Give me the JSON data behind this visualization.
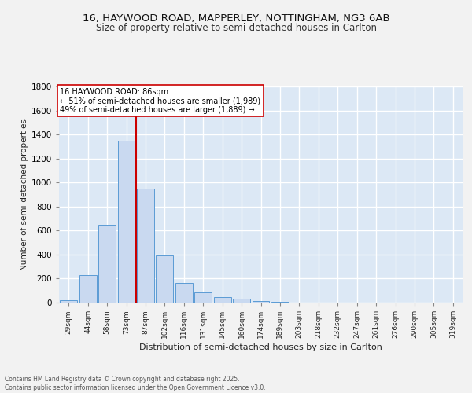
{
  "title1": "16, HAYWOOD ROAD, MAPPERLEY, NOTTINGHAM, NG3 6AB",
  "title2": "Size of property relative to semi-detached houses in Carlton",
  "xlabel": "Distribution of semi-detached houses by size in Carlton",
  "ylabel": "Number of semi-detached properties",
  "bar_labels": [
    "29sqm",
    "44sqm",
    "58sqm",
    "73sqm",
    "87sqm",
    "102sqm",
    "116sqm",
    "131sqm",
    "145sqm",
    "160sqm",
    "174sqm",
    "189sqm",
    "203sqm",
    "218sqm",
    "232sqm",
    "247sqm",
    "261sqm",
    "276sqm",
    "290sqm",
    "305sqm",
    "319sqm"
  ],
  "bar_values": [
    20,
    230,
    645,
    1350,
    950,
    390,
    165,
    85,
    47,
    30,
    10,
    5,
    0,
    0,
    0,
    0,
    0,
    0,
    0,
    0,
    0
  ],
  "bar_color": "#c9d9f0",
  "bar_edge_color": "#5b9bd5",
  "property_label": "16 HAYWOOD ROAD: 86sqm",
  "annotation_line1": "← 51% of semi-detached houses are smaller (1,989)",
  "annotation_line2": "49% of semi-detached houses are larger (1,889) →",
  "vline_color": "#cc0000",
  "vline_x": 4.5,
  "ylim": [
    0,
    1800
  ],
  "yticks": [
    0,
    200,
    400,
    600,
    800,
    1000,
    1200,
    1400,
    1600,
    1800
  ],
  "background_color": "#dce8f5",
  "grid_color": "#ffffff",
  "fig_bg": "#f2f2f2",
  "footer1": "Contains HM Land Registry data © Crown copyright and database right 2025.",
  "footer2": "Contains public sector information licensed under the Open Government Licence v3.0."
}
